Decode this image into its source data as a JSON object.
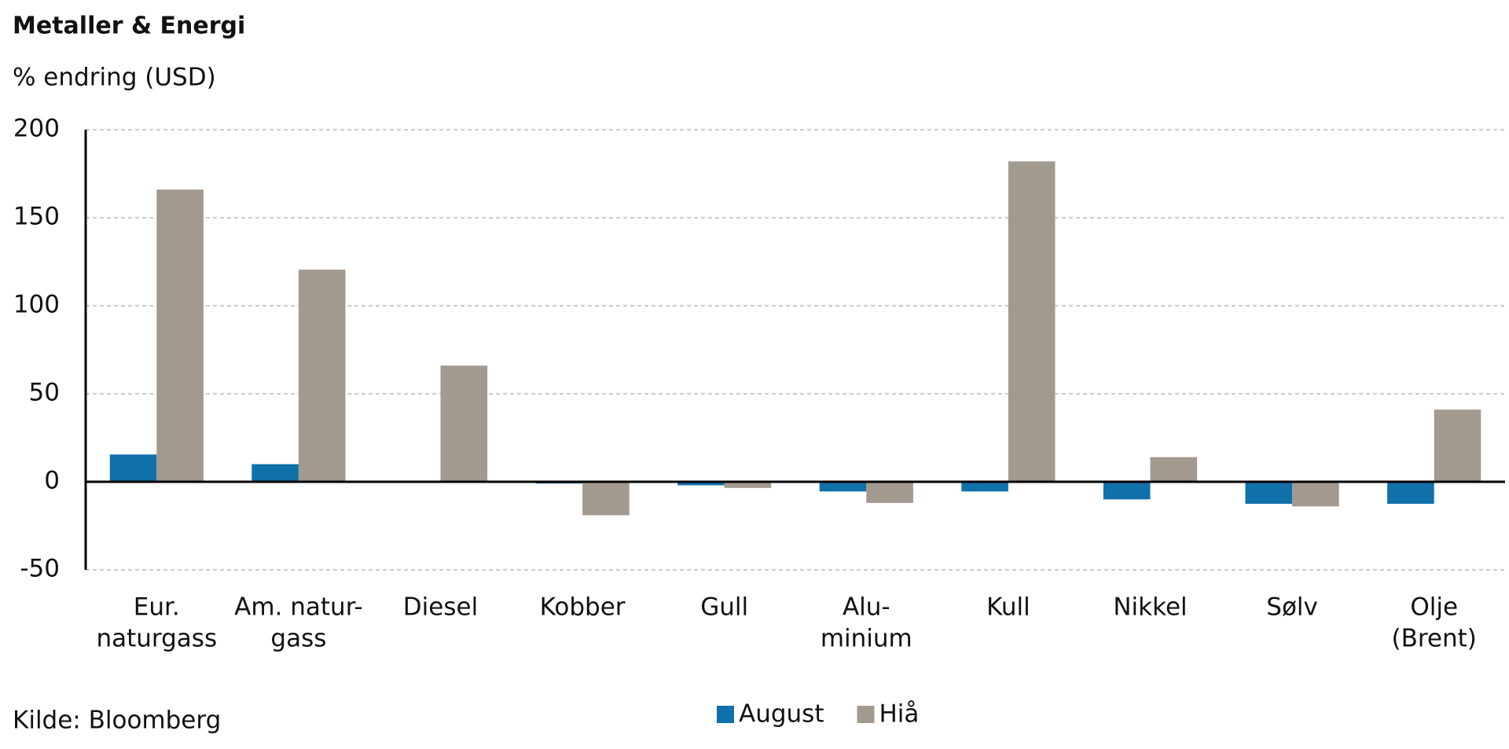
{
  "chart_data": {
    "type": "bar",
    "title": "Metaller & Energi",
    "subtitle": "% endring (USD)",
    "source": "Kilde: Bloomberg",
    "categories": [
      [
        "Eur.",
        "naturgass"
      ],
      [
        "Am. natur-",
        "gass"
      ],
      [
        "Diesel"
      ],
      [
        "Kobber"
      ],
      [
        "Gull"
      ],
      [
        "Alu-",
        "minium"
      ],
      [
        "Kull"
      ],
      [
        "Nikkel"
      ],
      [
        "Sølv"
      ],
      [
        "Olje",
        "(Brent)"
      ]
    ],
    "series": [
      {
        "name": "August",
        "color": "#1070aa",
        "values": [
          15.5,
          10,
          0,
          -1,
          -2,
          -5.5,
          -5.5,
          -10,
          -12.5,
          -12.5
        ]
      },
      {
        "name": "Hiå",
        "color": "#a39a8f",
        "values": [
          166,
          120.5,
          66,
          -19,
          -3.5,
          -12,
          182,
          14,
          -14,
          41
        ]
      }
    ],
    "ylim": [
      -50,
      200
    ],
    "yticks": [
      -50,
      0,
      50,
      100,
      150,
      200
    ],
    "grid": true
  }
}
